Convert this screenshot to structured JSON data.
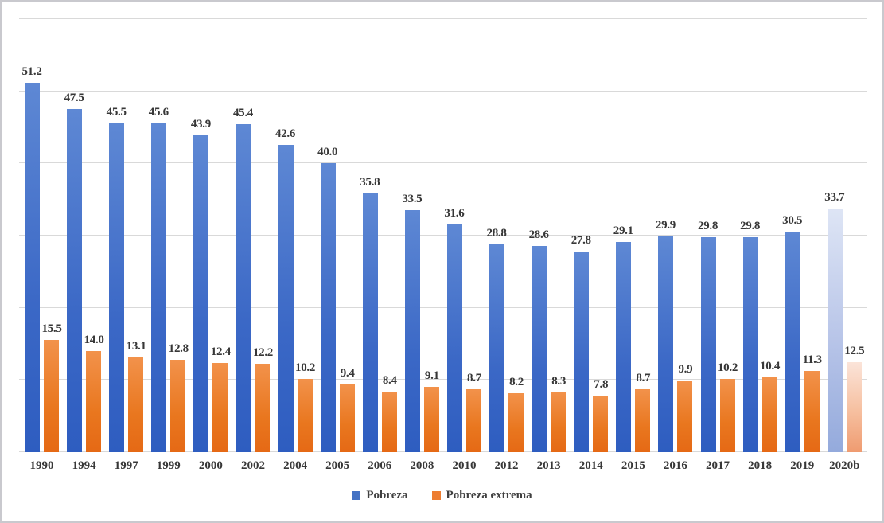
{
  "chart": {
    "legend": {
      "pobreza_label": "Pobreza",
      "pobreza_extrema_label": "Pobreza extrema"
    }
  },
  "chart_data": {
    "type": "bar",
    "title": "",
    "xlabel": "",
    "ylabel": "",
    "categories": [
      "1990",
      "1994",
      "1997",
      "1999",
      "2000",
      "2002",
      "2004",
      "2005",
      "2006",
      "2008",
      "2010",
      "2012",
      "2013",
      "2014",
      "2015",
      "2016",
      "2017",
      "2018",
      "2019",
      "2020b"
    ],
    "series": [
      {
        "name": "Pobreza",
        "color": "#4472C4",
        "values": [
          51.2,
          47.5,
          45.5,
          45.6,
          43.9,
          45.4,
          42.6,
          40.0,
          35.8,
          33.5,
          31.6,
          28.8,
          28.6,
          27.8,
          29.1,
          29.9,
          29.8,
          29.8,
          30.5,
          33.7
        ]
      },
      {
        "name": "Pobreza extrema",
        "color": "#ED7D31",
        "values": [
          15.5,
          14.0,
          13.1,
          12.8,
          12.4,
          12.2,
          10.2,
          9.4,
          8.4,
          9.1,
          8.7,
          8.2,
          8.3,
          7.8,
          8.7,
          9.9,
          10.2,
          10.4,
          11.3,
          12.5
        ]
      }
    ],
    "ylim": [
      0,
      60
    ],
    "gridline_step": 10,
    "grid": true,
    "y_axis_labels_visible": false,
    "legend_position": "bottom",
    "projected_category": "2020b",
    "value_label_format": "one_decimal",
    "colors": {
      "bar_pobreza_gradient_top": "#5E88D4",
      "bar_pobreza_gradient_bottom": "#2E5DC0",
      "bar_extrema_gradient_top": "#F2924B",
      "bar_extrema_gradient_bottom": "#E56915",
      "bar_pobreza_projected_top": "#DEE5F5",
      "bar_pobreza_projected_bottom": "#94AADC",
      "bar_extrema_projected_top": "#FBE4D9",
      "bar_extrema_projected_bottom": "#EF9B70",
      "gridline": "#D9D9D9",
      "label_text": "#373737",
      "legend_text": "#404040"
    }
  }
}
